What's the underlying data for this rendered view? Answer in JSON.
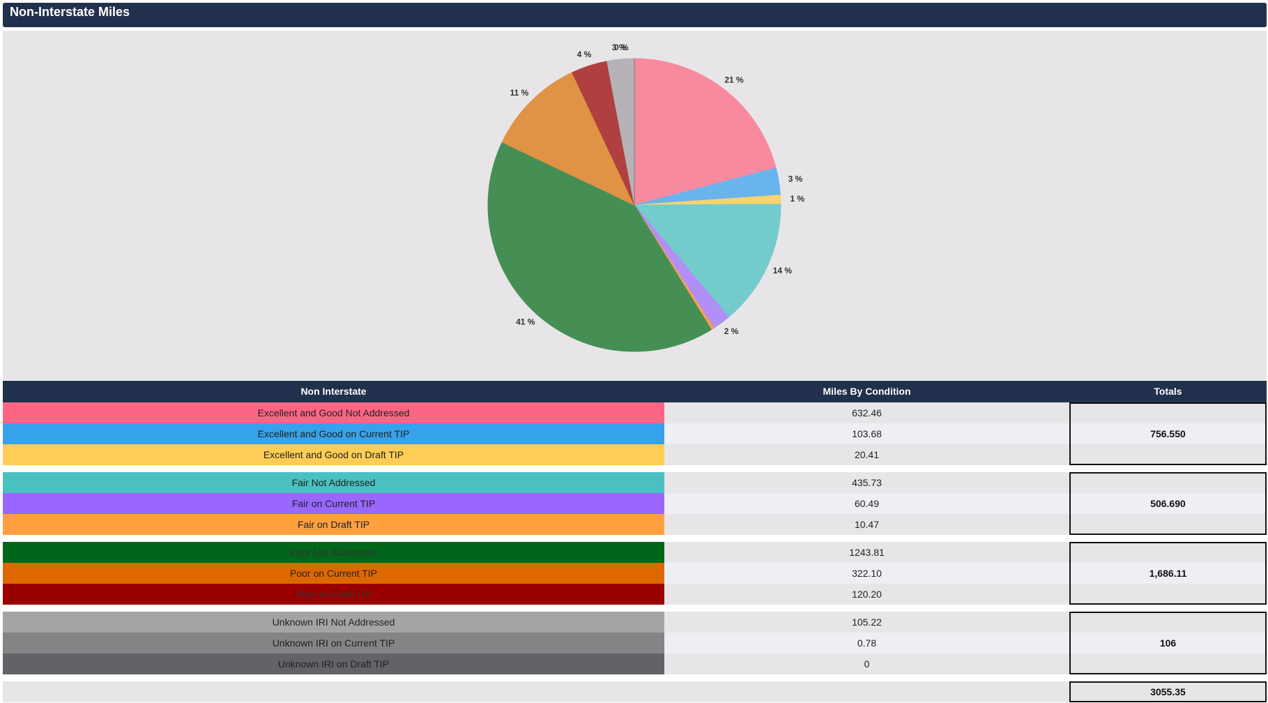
{
  "header": {
    "title": "Non-Interstate Miles"
  },
  "chart_data": {
    "type": "pie",
    "values": [
      21,
      3,
      1,
      14,
      2,
      0.34,
      41,
      11,
      4,
      3,
      0,
      0
    ],
    "value_labels": [
      "21 %",
      "3 %",
      "1 %",
      "14 %",
      "2 %",
      null,
      "41 %",
      "11 %",
      "4 %",
      "3 %",
      "0 %",
      null
    ],
    "colors": [
      "#f78a9e",
      "#6ab4ee",
      "#f9d36c",
      "#73cbcc",
      "#b28ef7",
      "#f7a04b",
      "#458f54",
      "#e09245",
      "#b04040",
      "#b5b3b8",
      "#9a989c",
      "#777579"
    ]
  },
  "table": {
    "columns": [
      "Non Interstate",
      "Miles By Condition",
      "Totals"
    ],
    "groups": [
      {
        "rows": [
          {
            "name": "Excellent and Good Not Addressed",
            "miles": "632.46",
            "color": "#fd6585"
          },
          {
            "name": "Excellent and Good on Current TIP",
            "miles": "103.68",
            "color": "#36a2eb"
          },
          {
            "name": "Excellent and Good on Draft TIP",
            "miles": "20.41",
            "color": "#fdcd56"
          }
        ],
        "total": "756.550"
      },
      {
        "rows": [
          {
            "name": "Fair Not Addressed",
            "miles": "435.73",
            "color": "#4bc0c0"
          },
          {
            "name": "Fair on Current TIP",
            "miles": "60.49",
            "color": "#9966ff"
          },
          {
            "name": "Fair on Draft TIP",
            "miles": "10.47",
            "color": "#ff9f40"
          }
        ],
        "total": "506.690"
      },
      {
        "rows": [
          {
            "name": "Poor Not Addressed",
            "miles": "1243.81",
            "color": "#006619"
          },
          {
            "name": "Poor on Current TIP",
            "miles": "322.10",
            "color": "#de6800"
          },
          {
            "name": "Poor on Draft TIP",
            "miles": "120.20",
            "color": "#9a0000"
          }
        ],
        "total": "1,686.11"
      },
      {
        "rows": [
          {
            "name": "Unknown IRI Not Addressed",
            "miles": "105.22",
            "color": "#a5a3a6"
          },
          {
            "name": "Unknown IRI on Current TIP",
            "miles": "0.78",
            "color": "#858386"
          },
          {
            "name": "Unknown IRI on Draft TIP",
            "miles": "0",
            "color": "#646266"
          }
        ],
        "total": "106"
      }
    ],
    "grand_total": "3055.35"
  }
}
